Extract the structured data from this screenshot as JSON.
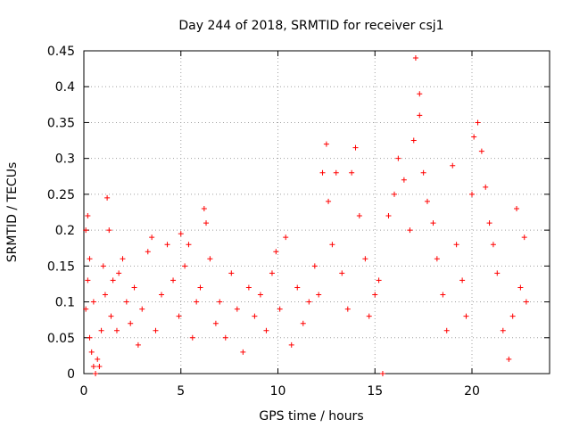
{
  "chart_data": {
    "type": "scatter",
    "title": "Day 244 of 2018, SRMTID for receiver csj1",
    "xlabel": "GPS time / hours",
    "ylabel": "SRMTID / TECUs",
    "xlim": [
      0,
      24
    ],
    "ylim": [
      0,
      0.45
    ],
    "xticks": [
      0,
      5,
      10,
      15,
      20
    ],
    "xtick_labels": [
      "0",
      "5",
      "10",
      "15",
      "20"
    ],
    "yticks": [
      0,
      0.05,
      0.1,
      0.15,
      0.2,
      0.25,
      0.3,
      0.35,
      0.4,
      0.45
    ],
    "ytick_labels": [
      "0",
      "0.05",
      "0.1",
      "0.15",
      "0.2",
      "0.25",
      "0.3",
      "0.35",
      "0.4",
      "0.45"
    ],
    "grid": true,
    "marker": "plus",
    "color": "#ff0000",
    "series": [
      {
        "name": "csj1",
        "points": [
          [
            0.1,
            0.09
          ],
          [
            0.1,
            0.2
          ],
          [
            0.2,
            0.22
          ],
          [
            0.2,
            0.13
          ],
          [
            0.3,
            0.16
          ],
          [
            0.3,
            0.05
          ],
          [
            0.4,
            0.03
          ],
          [
            0.5,
            0.01
          ],
          [
            0.5,
            0.1
          ],
          [
            0.6,
            0.0
          ],
          [
            0.7,
            0.02
          ],
          [
            0.8,
            0.01
          ],
          [
            0.9,
            0.06
          ],
          [
            1.0,
            0.15
          ],
          [
            1.1,
            0.11
          ],
          [
            1.2,
            0.245
          ],
          [
            1.3,
            0.2
          ],
          [
            1.4,
            0.08
          ],
          [
            1.5,
            0.13
          ],
          [
            1.7,
            0.06
          ],
          [
            1.8,
            0.14
          ],
          [
            2.0,
            0.16
          ],
          [
            2.2,
            0.1
          ],
          [
            2.4,
            0.07
          ],
          [
            2.6,
            0.12
          ],
          [
            2.8,
            0.04
          ],
          [
            3.0,
            0.09
          ],
          [
            3.3,
            0.17
          ],
          [
            3.5,
            0.19
          ],
          [
            3.7,
            0.06
          ],
          [
            4.0,
            0.11
          ],
          [
            4.3,
            0.18
          ],
          [
            4.6,
            0.13
          ],
          [
            4.9,
            0.08
          ],
          [
            5.0,
            0.195
          ],
          [
            5.2,
            0.15
          ],
          [
            5.4,
            0.18
          ],
          [
            5.6,
            0.05
          ],
          [
            5.8,
            0.1
          ],
          [
            6.0,
            0.12
          ],
          [
            6.2,
            0.23
          ],
          [
            6.3,
            0.21
          ],
          [
            6.5,
            0.16
          ],
          [
            6.8,
            0.07
          ],
          [
            7.0,
            0.1
          ],
          [
            7.3,
            0.05
          ],
          [
            7.6,
            0.14
          ],
          [
            7.9,
            0.09
          ],
          [
            8.2,
            0.03
          ],
          [
            8.5,
            0.12
          ],
          [
            8.8,
            0.08
          ],
          [
            9.1,
            0.11
          ],
          [
            9.4,
            0.06
          ],
          [
            9.7,
            0.14
          ],
          [
            9.9,
            0.17
          ],
          [
            10.1,
            0.09
          ],
          [
            10.4,
            0.19
          ],
          [
            10.7,
            0.04
          ],
          [
            11.0,
            0.12
          ],
          [
            11.3,
            0.07
          ],
          [
            11.6,
            0.1
          ],
          [
            11.9,
            0.15
          ],
          [
            12.1,
            0.11
          ],
          [
            12.3,
            0.28
          ],
          [
            12.5,
            0.32
          ],
          [
            12.6,
            0.24
          ],
          [
            12.8,
            0.18
          ],
          [
            13.0,
            0.28
          ],
          [
            13.3,
            0.14
          ],
          [
            13.6,
            0.09
          ],
          [
            13.8,
            0.28
          ],
          [
            14.0,
            0.315
          ],
          [
            14.2,
            0.22
          ],
          [
            14.5,
            0.16
          ],
          [
            14.7,
            0.08
          ],
          [
            15.0,
            0.11
          ],
          [
            15.2,
            0.13
          ],
          [
            15.4,
            0.0
          ],
          [
            15.7,
            0.22
          ],
          [
            16.0,
            0.25
          ],
          [
            16.2,
            0.3
          ],
          [
            16.5,
            0.27
          ],
          [
            16.8,
            0.2
          ],
          [
            17.0,
            0.325
          ],
          [
            17.1,
            0.44
          ],
          [
            17.3,
            0.39
          ],
          [
            17.3,
            0.36
          ],
          [
            17.5,
            0.28
          ],
          [
            17.7,
            0.24
          ],
          [
            18.0,
            0.21
          ],
          [
            18.2,
            0.16
          ],
          [
            18.5,
            0.11
          ],
          [
            18.7,
            0.06
          ],
          [
            19.0,
            0.29
          ],
          [
            19.2,
            0.18
          ],
          [
            19.5,
            0.13
          ],
          [
            19.7,
            0.08
          ],
          [
            20.0,
            0.25
          ],
          [
            20.1,
            0.33
          ],
          [
            20.3,
            0.35
          ],
          [
            20.5,
            0.31
          ],
          [
            20.7,
            0.26
          ],
          [
            20.9,
            0.21
          ],
          [
            21.1,
            0.18
          ],
          [
            21.3,
            0.14
          ],
          [
            21.6,
            0.06
          ],
          [
            21.9,
            0.02
          ],
          [
            22.1,
            0.08
          ],
          [
            22.3,
            0.23
          ],
          [
            22.5,
            0.12
          ],
          [
            22.7,
            0.19
          ],
          [
            22.8,
            0.1
          ]
        ]
      }
    ]
  }
}
